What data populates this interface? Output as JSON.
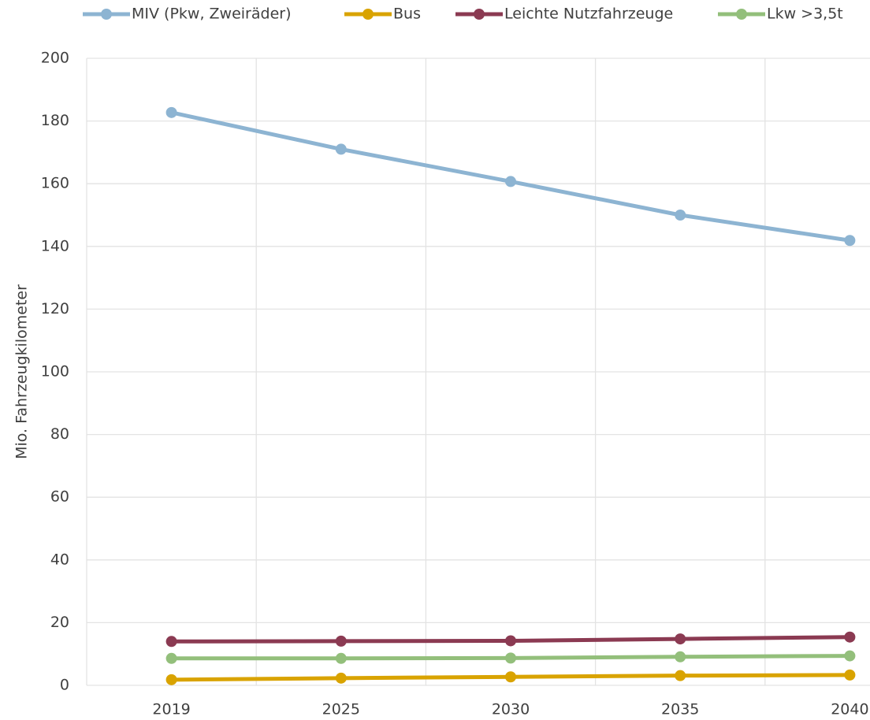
{
  "chart_data": {
    "type": "line",
    "y_label": "Mio. Fahrzeugkilometer",
    "categories": [
      "2019",
      "2025",
      "2030",
      "2035",
      "2040"
    ],
    "series": [
      {
        "name": "MIV (Pkw, Zweiräder)",
        "color": "#8db4d2",
        "values": [
          182.7,
          171,
          160.7,
          150,
          141.9
        ]
      },
      {
        "name": "Bus",
        "color": "#d9a300",
        "values": [
          1.8,
          2.3,
          2.7,
          3.1,
          3.3
        ]
      },
      {
        "name": "Leichte Nutzfahrzeuge",
        "color": "#8b3a52",
        "values": [
          14,
          14.1,
          14.2,
          14.8,
          15.4
        ]
      },
      {
        "name": "Lkw >3,5t",
        "color": "#93bf7b",
        "values": [
          8.6,
          8.6,
          8.7,
          9.1,
          9.4
        ]
      }
    ],
    "ylim": [
      0,
      200
    ],
    "yticks": [
      0,
      20,
      40,
      60,
      80,
      100,
      120,
      140,
      160,
      180,
      200
    ],
    "grid": true,
    "legend": "top"
  }
}
